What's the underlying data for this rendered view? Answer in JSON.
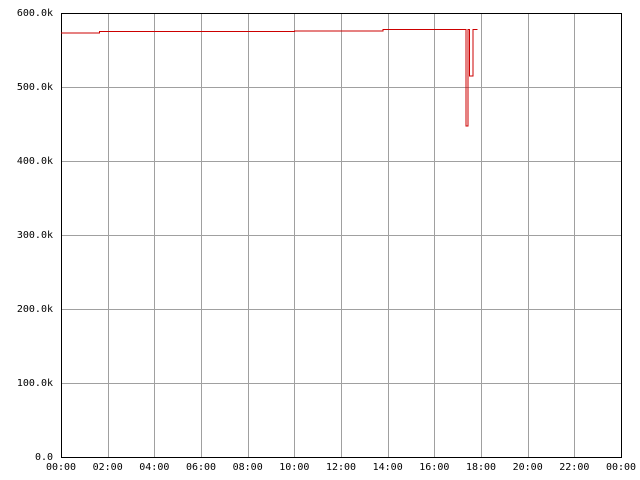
{
  "chart_data": {
    "type": "line",
    "title": "",
    "xlabel": "",
    "ylabel": "",
    "grid": true,
    "xlim": [
      0,
      24
    ],
    "ylim": [
      0,
      600000
    ],
    "x_ticks": [
      0,
      2,
      4,
      6,
      8,
      10,
      12,
      14,
      16,
      18,
      20,
      22,
      24
    ],
    "x_tick_labels": [
      "00:00",
      "02:00",
      "04:00",
      "06:00",
      "08:00",
      "10:00",
      "12:00",
      "14:00",
      "16:00",
      "18:00",
      "20:00",
      "22:00",
      "00:00"
    ],
    "y_ticks": [
      0,
      100000,
      200000,
      300000,
      400000,
      500000,
      600000
    ],
    "y_tick_labels": [
      "0.0",
      "100.0k",
      "200.0k",
      "300.0k",
      "400.0k",
      "500.0k",
      "600.0k"
    ],
    "series": [
      {
        "color": "#cc0000",
        "x": [
          0.0,
          1.65,
          1.65,
          10.0,
          10.0,
          13.8,
          13.8,
          17.35,
          17.35,
          17.45,
          17.45,
          17.5,
          17.5,
          17.65,
          17.65,
          17.85
        ],
        "y": [
          573000,
          573000,
          575000,
          575000,
          576000,
          576000,
          578000,
          578000,
          447000,
          447000,
          578000,
          578000,
          515000,
          515000,
          578000,
          578000
        ]
      }
    ]
  }
}
